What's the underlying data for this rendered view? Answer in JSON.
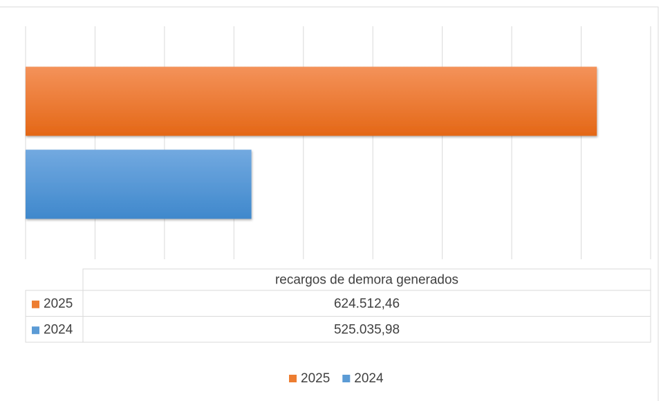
{
  "chart_data": {
    "type": "hbar",
    "categories": [
      "recargos de demora generados"
    ],
    "series": [
      {
        "name": "2025",
        "color": "#ED7D31",
        "values": [
          624512.46
        ],
        "value_labels": [
          "624.512,46"
        ]
      },
      {
        "name": "2024",
        "color": "#5B9BD5",
        "values": [
          525035.98
        ],
        "value_labels": [
          "525.035,98"
        ]
      }
    ],
    "xlim": [
      460000,
      640000
    ],
    "xticks": [
      460000,
      480000,
      500000,
      520000,
      540000,
      560000,
      580000,
      600000,
      620000,
      640000
    ],
    "grid": true,
    "legend": "bottom"
  }
}
